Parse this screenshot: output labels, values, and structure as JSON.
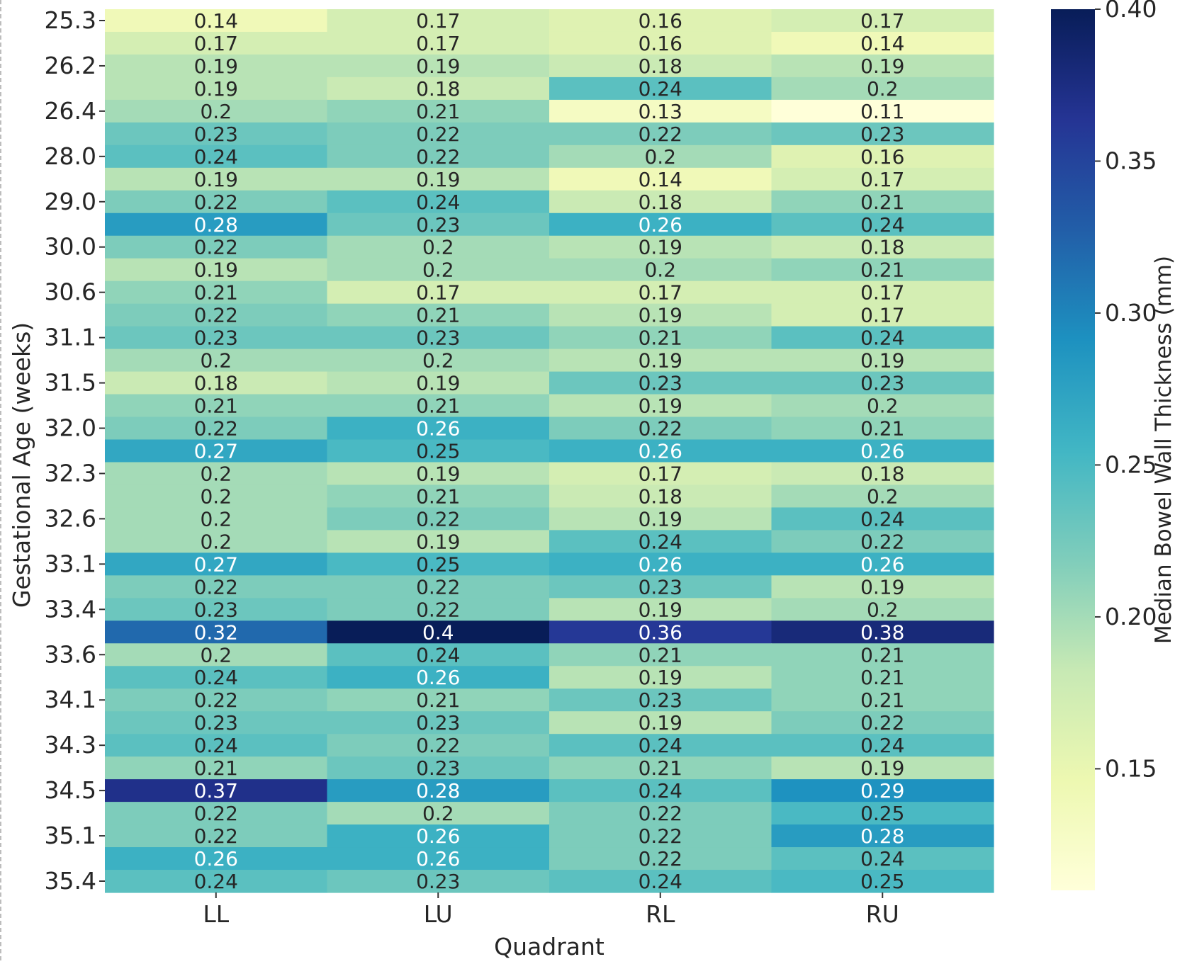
{
  "chart_data": {
    "type": "heatmap",
    "title": "",
    "xlabel": "Quadrant",
    "ylabel": "Gestational Age (weeks)",
    "x_categories": [
      "LL",
      "LU",
      "RL",
      "RU"
    ],
    "y_tick_labels": [
      "25.3",
      "26.2",
      "26.4",
      "28.0",
      "29.0",
      "30.0",
      "30.6",
      "31.1",
      "31.5",
      "32.0",
      "32.3",
      "32.6",
      "33.1",
      "33.4",
      "33.6",
      "34.1",
      "34.3",
      "34.5",
      "35.1",
      "35.4"
    ],
    "rows": 39,
    "y_tick_every": 2,
    "values": [
      [
        0.14,
        0.17,
        0.16,
        0.17
      ],
      [
        0.17,
        0.17,
        0.16,
        0.14
      ],
      [
        0.19,
        0.19,
        0.18,
        0.19
      ],
      [
        0.19,
        0.18,
        0.24,
        0.2
      ],
      [
        0.2,
        0.21,
        0.13,
        0.11
      ],
      [
        0.23,
        0.22,
        0.22,
        0.23
      ],
      [
        0.24,
        0.22,
        0.2,
        0.16
      ],
      [
        0.19,
        0.19,
        0.14,
        0.17
      ],
      [
        0.22,
        0.24,
        0.18,
        0.21
      ],
      [
        0.28,
        0.23,
        0.26,
        0.24
      ],
      [
        0.22,
        0.2,
        0.19,
        0.18
      ],
      [
        0.19,
        0.2,
        0.2,
        0.21
      ],
      [
        0.21,
        0.17,
        0.17,
        0.17
      ],
      [
        0.22,
        0.21,
        0.19,
        0.17
      ],
      [
        0.23,
        0.23,
        0.21,
        0.24
      ],
      [
        0.2,
        0.2,
        0.19,
        0.19
      ],
      [
        0.18,
        0.19,
        0.23,
        0.23
      ],
      [
        0.21,
        0.21,
        0.19,
        0.2
      ],
      [
        0.22,
        0.26,
        0.22,
        0.21
      ],
      [
        0.27,
        0.25,
        0.26,
        0.26
      ],
      [
        0.2,
        0.19,
        0.17,
        0.18
      ],
      [
        0.2,
        0.21,
        0.18,
        0.2
      ],
      [
        0.2,
        0.22,
        0.19,
        0.24
      ],
      [
        0.2,
        0.19,
        0.24,
        0.22
      ],
      [
        0.27,
        0.25,
        0.26,
        0.26
      ],
      [
        0.22,
        0.22,
        0.23,
        0.19
      ],
      [
        0.23,
        0.22,
        0.19,
        0.2
      ],
      [
        0.32,
        0.4,
        0.36,
        0.38
      ],
      [
        0.2,
        0.24,
        0.21,
        0.21
      ],
      [
        0.24,
        0.26,
        0.19,
        0.21
      ],
      [
        0.22,
        0.21,
        0.23,
        0.21
      ],
      [
        0.23,
        0.23,
        0.19,
        0.22
      ],
      [
        0.24,
        0.22,
        0.24,
        0.24
      ],
      [
        0.21,
        0.23,
        0.21,
        0.19
      ],
      [
        0.37,
        0.28,
        0.24,
        0.29
      ],
      [
        0.22,
        0.2,
        0.22,
        0.25
      ],
      [
        0.22,
        0.26,
        0.22,
        0.28
      ],
      [
        0.26,
        0.26,
        0.22,
        0.24
      ],
      [
        0.24,
        0.23,
        0.24,
        0.25
      ]
    ],
    "colorbar": {
      "label": "Median Bowel Wall Thickness (mm)",
      "min": 0.11,
      "max": 0.4,
      "ticks": [
        0.15,
        0.2,
        0.25,
        0.3,
        0.35,
        0.4
      ],
      "tick_labels": [
        "0.15",
        "0.20",
        "0.25",
        "0.30",
        "0.35",
        "0.40"
      ],
      "colormap": "YlGnBu",
      "colormap_stops": [
        "#ffffd9",
        "#edf8b1",
        "#c7e9b4",
        "#7fcdbb",
        "#41b6c4",
        "#1d91c0",
        "#225ea8",
        "#253494",
        "#081d58"
      ]
    },
    "annotation_text_colors": {
      "light_cells": "#262626",
      "dark_cells": "#ffffff"
    },
    "legend": "colorbar-right",
    "grid": false
  }
}
